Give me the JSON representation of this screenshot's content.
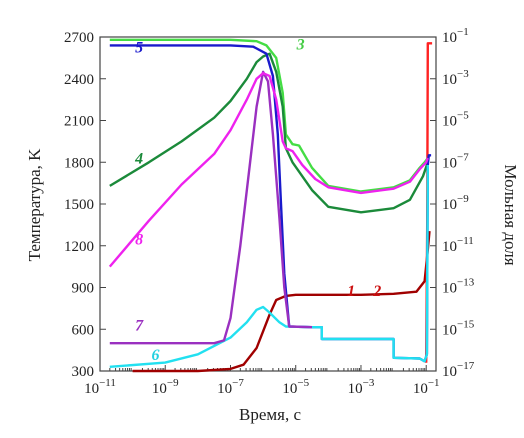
{
  "chart_data": {
    "type": "line",
    "xlabel": "Время, с",
    "ylabel_left": "Температура, K",
    "ylabel_right": "Мольная доля",
    "x_scale": "log",
    "x_range_exp": [
      -11,
      -0.7
    ],
    "x_ticks": [
      {
        "exp": -11,
        "text": "10",
        "sup": "−11"
      },
      {
        "exp": -9,
        "text": "10",
        "sup": "−9"
      },
      {
        "exp": -7,
        "text": "10",
        "sup": "−7"
      },
      {
        "exp": -5,
        "text": "10",
        "sup": "−5"
      },
      {
        "exp": -3,
        "text": "10",
        "sup": "−3"
      },
      {
        "exp": -1,
        "text": "10",
        "sup": "−1"
      }
    ],
    "y_left_range": [
      300,
      2700
    ],
    "y_left_ticks": [
      "300",
      "600",
      "900",
      "1200",
      "1500",
      "1800",
      "2100",
      "2400",
      "2700"
    ],
    "y_right_scale": "log",
    "y_right_range_exp": [
      -17,
      -1
    ],
    "y_right_ticks": [
      {
        "exp": -1,
        "text": "10",
        "sup": "−1"
      },
      {
        "exp": -3,
        "text": "10",
        "sup": "−3"
      },
      {
        "exp": -5,
        "text": "10",
        "sup": "−5"
      },
      {
        "exp": -7,
        "text": "10",
        "sup": "−7"
      },
      {
        "exp": -9,
        "text": "10",
        "sup": "−9"
      },
      {
        "exp": -11,
        "text": "10",
        "sup": "−11"
      },
      {
        "exp": -13,
        "text": "10",
        "sup": "−13"
      },
      {
        "exp": -15,
        "text": "10",
        "sup": "−15"
      },
      {
        "exp": -17,
        "text": "10",
        "sup": "−17"
      }
    ],
    "series": [
      {
        "name": "1",
        "axis": "right",
        "color": "#a00000",
        "points": [
          [
            -10,
            -17
          ],
          [
            -8,
            -17
          ],
          [
            -7,
            -16.9
          ],
          [
            -6.6,
            -16.7
          ],
          [
            -6.2,
            -15.9
          ],
          [
            -6.0,
            -15.1
          ],
          [
            -5.8,
            -14.3
          ],
          [
            -5.6,
            -13.6
          ],
          [
            -5.3,
            -13.4
          ],
          [
            -5,
            -13.35
          ],
          [
            -3,
            -13.35
          ],
          [
            -2,
            -13.3
          ],
          [
            -1.3,
            -13.2
          ],
          [
            -1.05,
            -12.7
          ],
          [
            -0.95,
            -11.2
          ],
          [
            -0.9,
            -10.3
          ]
        ]
      },
      {
        "name": "2",
        "axis": "right",
        "color": "#ff2222",
        "points": [
          [
            -1.0,
            -16.6
          ],
          [
            -0.97,
            -10
          ],
          [
            -0.95,
            -1.3
          ],
          [
            -0.82,
            -1.3
          ]
        ]
      },
      {
        "name": "3",
        "axis": "left",
        "color": "#44dd44",
        "points": [
          [
            -10.7,
            2680
          ],
          [
            -7,
            2680
          ],
          [
            -6.2,
            2670
          ],
          [
            -5.9,
            2640
          ],
          [
            -5.6,
            2550
          ],
          [
            -5.4,
            2300
          ],
          [
            -5.3,
            2000
          ],
          [
            -5.1,
            1930
          ],
          [
            -4.9,
            1920
          ],
          [
            -4.5,
            1760
          ],
          [
            -4,
            1630
          ],
          [
            -3,
            1590
          ],
          [
            -2,
            1620
          ],
          [
            -1.5,
            1670
          ],
          [
            -1.2,
            1760
          ],
          [
            -1.05,
            1800
          ],
          [
            -0.95,
            1830
          ]
        ]
      },
      {
        "name": "4",
        "axis": "left",
        "color": "#1b8a3a",
        "points": [
          [
            -10.7,
            1630
          ],
          [
            -9.5,
            1800
          ],
          [
            -8.5,
            1950
          ],
          [
            -7.5,
            2120
          ],
          [
            -7,
            2240
          ],
          [
            -6.5,
            2400
          ],
          [
            -6.2,
            2520
          ],
          [
            -6.0,
            2560
          ],
          [
            -5.8,
            2580
          ],
          [
            -5.6,
            2450
          ],
          [
            -5.4,
            2200
          ],
          [
            -5.3,
            1900
          ],
          [
            -5.1,
            1800
          ],
          [
            -4.5,
            1600
          ],
          [
            -4,
            1480
          ],
          [
            -3,
            1440
          ],
          [
            -2,
            1470
          ],
          [
            -1.5,
            1530
          ],
          [
            -1.1,
            1700
          ],
          [
            -0.95,
            1800
          ]
        ]
      },
      {
        "name": "5",
        "axis": "left",
        "color": "#1a1acc",
        "points": [
          [
            -10.7,
            2640
          ],
          [
            -7,
            2640
          ],
          [
            -6.3,
            2630
          ],
          [
            -5.9,
            2580
          ],
          [
            -5.7,
            2420
          ],
          [
            -5.55,
            2000
          ],
          [
            -5.45,
            1500
          ],
          [
            -5.35,
            1000
          ],
          [
            -5.2,
            620
          ],
          [
            -4.5,
            615
          ],
          [
            -4.2,
            615
          ],
          [
            -4.2,
            530
          ],
          [
            -2.0,
            530
          ],
          [
            -2.0,
            395
          ],
          [
            -1.2,
            390
          ],
          [
            -1.05,
            370
          ],
          [
            -0.98,
            420
          ],
          [
            -0.95,
            1780
          ],
          [
            -0.92,
            1850
          ],
          [
            -0.85,
            1850
          ]
        ]
      },
      {
        "name": "6",
        "axis": "left",
        "color": "#22e0f0",
        "points": [
          [
            -10.7,
            330
          ],
          [
            -9,
            360
          ],
          [
            -8,
            420
          ],
          [
            -7,
            540
          ],
          [
            -6.5,
            650
          ],
          [
            -6.2,
            740
          ],
          [
            -6.0,
            760
          ],
          [
            -5.8,
            720
          ],
          [
            -5.5,
            650
          ],
          [
            -5.3,
            620
          ],
          [
            -4.5,
            615
          ],
          [
            -4.2,
            615
          ],
          [
            -4.2,
            530
          ],
          [
            -2.0,
            530
          ],
          [
            -2.0,
            395
          ],
          [
            -1.2,
            390
          ],
          [
            -1.05,
            370
          ],
          [
            -0.98,
            420
          ],
          [
            -0.95,
            1780
          ]
        ]
      },
      {
        "name": "7",
        "axis": "left",
        "color": "#9a30c0",
        "points": [
          [
            -10.7,
            500
          ],
          [
            -7.5,
            500
          ],
          [
            -7.2,
            520
          ],
          [
            -7.0,
            680
          ],
          [
            -6.7,
            1200
          ],
          [
            -6.4,
            1800
          ],
          [
            -6.2,
            2200
          ],
          [
            -6.0,
            2450
          ],
          [
            -5.85,
            2380
          ],
          [
            -5.7,
            2000
          ],
          [
            -5.5,
            1400
          ],
          [
            -5.35,
            900
          ],
          [
            -5.2,
            620
          ],
          [
            -4.5,
            615
          ]
        ]
      },
      {
        "name": "8",
        "axis": "left",
        "color": "#ee22ee",
        "points": [
          [
            -10.7,
            1050
          ],
          [
            -9.5,
            1380
          ],
          [
            -8.5,
            1640
          ],
          [
            -7.5,
            1860
          ],
          [
            -7,
            2030
          ],
          [
            -6.5,
            2250
          ],
          [
            -6.2,
            2400
          ],
          [
            -6.0,
            2440
          ],
          [
            -5.8,
            2420
          ],
          [
            -5.6,
            2250
          ],
          [
            -5.4,
            1950
          ],
          [
            -5.3,
            1900
          ],
          [
            -5.1,
            1880
          ],
          [
            -4.8,
            1780
          ],
          [
            -4.4,
            1680
          ],
          [
            -4,
            1620
          ],
          [
            -3,
            1580
          ],
          [
            -2,
            1610
          ],
          [
            -1.5,
            1660
          ],
          [
            -1.2,
            1750
          ],
          [
            -1.0,
            1800
          ],
          [
            -0.95,
            1830
          ]
        ]
      }
    ],
    "series_labels": [
      {
        "name": "1",
        "at": [
          -3.3,
          840
        ],
        "color": "#cc1111"
      },
      {
        "name": "2",
        "at": [
          -2.5,
          840
        ],
        "color": "#cc1111"
      },
      {
        "name": "3",
        "at": [
          -4.85,
          2610
        ],
        "color": "#44cc44"
      },
      {
        "name": "4",
        "at": [
          -9.8,
          1790
        ],
        "color": "#1b8a3a"
      },
      {
        "name": "5",
        "at": [
          -9.8,
          2590
        ],
        "color": "#1a1acc"
      },
      {
        "name": "6",
        "at": [
          -9.3,
          380
        ],
        "color": "#22d0e0"
      },
      {
        "name": "7",
        "at": [
          -9.8,
          590
        ],
        "color": "#9a30c0"
      },
      {
        "name": "8",
        "at": [
          -9.8,
          1210
        ],
        "color": "#ee22ee"
      }
    ]
  }
}
